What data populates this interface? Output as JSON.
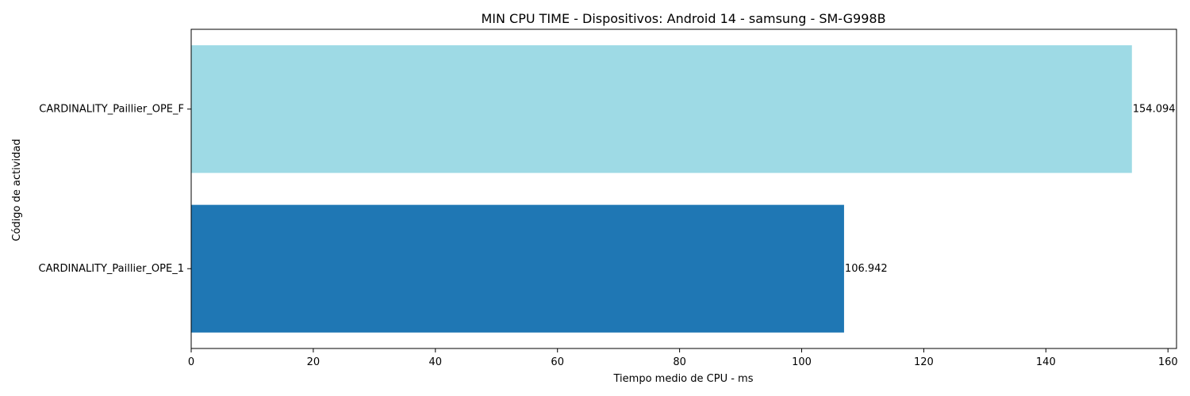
{
  "chart_data": {
    "type": "bar",
    "orientation": "horizontal",
    "title": "MIN CPU TIME - Dispositivos: Android 14 - samsung - SM-G998B",
    "xlabel": "Tiempo medio de CPU - ms",
    "ylabel": "Código de actividad",
    "categories": [
      "CARDINALITY_Paillier_OPE_1",
      "CARDINALITY_Paillier_OPE_F"
    ],
    "values": [
      106.942,
      154.094
    ],
    "value_labels": [
      "106.942",
      "154.094"
    ],
    "colors": [
      "#1f77b4",
      "#9edae5"
    ],
    "xlim": [
      0,
      161.4
    ],
    "xticks": [
      0,
      20,
      40,
      60,
      80,
      100,
      120,
      140,
      160
    ],
    "grid": false,
    "legend": "none"
  }
}
